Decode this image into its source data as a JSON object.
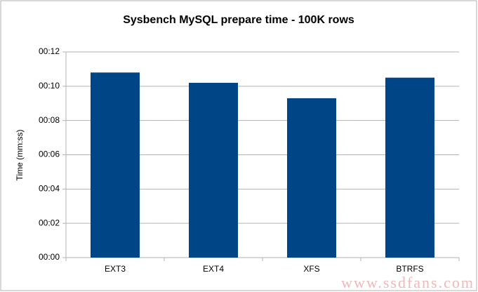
{
  "chart_data": {
    "type": "bar",
    "title": "Sysbench MySQL prepare time - 100K rows",
    "y_label": "Time (mm:ss)",
    "categories": [
      "EXT3",
      "EXT4",
      "XFS",
      "BTRFS"
    ],
    "values": [
      10.8,
      10.2,
      9.3,
      10.5
    ],
    "color": "#004586",
    "ylim": [
      0,
      12
    ],
    "yticks": [
      {
        "value": 0,
        "label": "00:00"
      },
      {
        "value": 2,
        "label": "00:02"
      },
      {
        "value": 4,
        "label": "00:04"
      },
      {
        "value": 6,
        "label": "00:06"
      },
      {
        "value": 8,
        "label": "00:08"
      },
      {
        "value": 10,
        "label": "00:10"
      },
      {
        "value": 12,
        "label": "00:12"
      }
    ],
    "grid": true,
    "watermark": "www.ssdfans.com"
  }
}
